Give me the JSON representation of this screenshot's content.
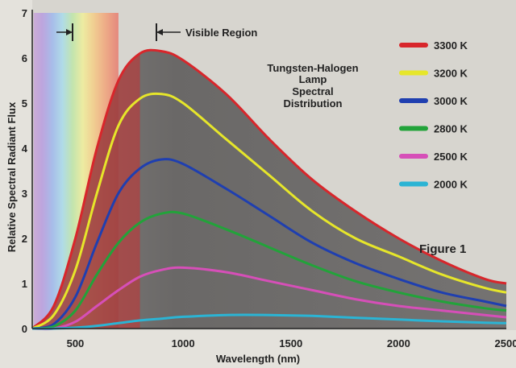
{
  "chart_data": {
    "type": "line",
    "title_lines": [
      "Tungsten-Halogen",
      "Lamp",
      "Spectral",
      "Distribution"
    ],
    "xlabel": "Wavelength (nm)",
    "ylabel": "Relative Spectral Radiant Flux",
    "xlim": [
      300,
      2500
    ],
    "ylim": [
      0,
      7
    ],
    "xticks": [
      500,
      1000,
      1500,
      2000,
      2500
    ],
    "yticks": [
      0,
      1,
      2,
      3,
      4,
      5,
      6,
      7
    ],
    "visible_region_label": "Visible Region",
    "visible_region_nm": [
      400,
      700
    ],
    "figure_label": "Figure 1",
    "legend_position": "top-right",
    "series": [
      {
        "name": "3300 K",
        "color": "#d8262b",
        "x": [
          300,
          400,
          500,
          600,
          700,
          800,
          900,
          1000,
          1200,
          1400,
          1600,
          1800,
          2000,
          2200,
          2400,
          2500
        ],
        "y": [
          0,
          0.5,
          2.0,
          4.0,
          5.5,
          6.1,
          6.15,
          5.95,
          5.2,
          4.2,
          3.3,
          2.6,
          2.0,
          1.5,
          1.1,
          1.0
        ]
      },
      {
        "name": "3200 K",
        "color": "#e6e62a",
        "x": [
          300,
          400,
          500,
          600,
          700,
          800,
          900,
          1000,
          1200,
          1400,
          1600,
          1800,
          2000,
          2200,
          2400,
          2500
        ],
        "y": [
          0,
          0.3,
          1.3,
          3.0,
          4.5,
          5.1,
          5.2,
          5.0,
          4.2,
          3.4,
          2.6,
          2.0,
          1.6,
          1.2,
          0.9,
          0.8
        ]
      },
      {
        "name": "3000 K",
        "color": "#1f3fb0",
        "x": [
          300,
          400,
          500,
          600,
          700,
          800,
          900,
          1000,
          1200,
          1400,
          1600,
          1800,
          2000,
          2200,
          2400,
          2500
        ],
        "y": [
          0,
          0.1,
          0.7,
          1.9,
          3.0,
          3.55,
          3.75,
          3.65,
          3.1,
          2.5,
          1.9,
          1.45,
          1.1,
          0.8,
          0.6,
          0.5
        ]
      },
      {
        "name": "2800 K",
        "color": "#22a33a",
        "x": [
          300,
          400,
          500,
          600,
          700,
          800,
          900,
          1000,
          1200,
          1400,
          1600,
          1800,
          2000,
          2200,
          2400,
          2500
        ],
        "y": [
          0,
          0.05,
          0.4,
          1.2,
          1.9,
          2.35,
          2.55,
          2.55,
          2.2,
          1.8,
          1.4,
          1.05,
          0.8,
          0.6,
          0.45,
          0.4
        ]
      },
      {
        "name": "2500 K",
        "color": "#d64fb8",
        "x": [
          300,
          400,
          500,
          600,
          700,
          800,
          900,
          1000,
          1200,
          1400,
          1600,
          1800,
          2000,
          2200,
          2400,
          2500
        ],
        "y": [
          0,
          0,
          0.15,
          0.5,
          0.85,
          1.15,
          1.3,
          1.35,
          1.25,
          1.05,
          0.85,
          0.65,
          0.5,
          0.4,
          0.3,
          0.25
        ]
      },
      {
        "name": "2000 K",
        "color": "#2bb4d4",
        "x": [
          300,
          400,
          500,
          600,
          700,
          800,
          900,
          1000,
          1200,
          1400,
          1600,
          1800,
          2000,
          2200,
          2400,
          2500
        ],
        "y": [
          0,
          0,
          0.02,
          0.06,
          0.12,
          0.18,
          0.22,
          0.26,
          0.3,
          0.3,
          0.28,
          0.24,
          0.2,
          0.16,
          0.13,
          0.12
        ]
      }
    ]
  }
}
